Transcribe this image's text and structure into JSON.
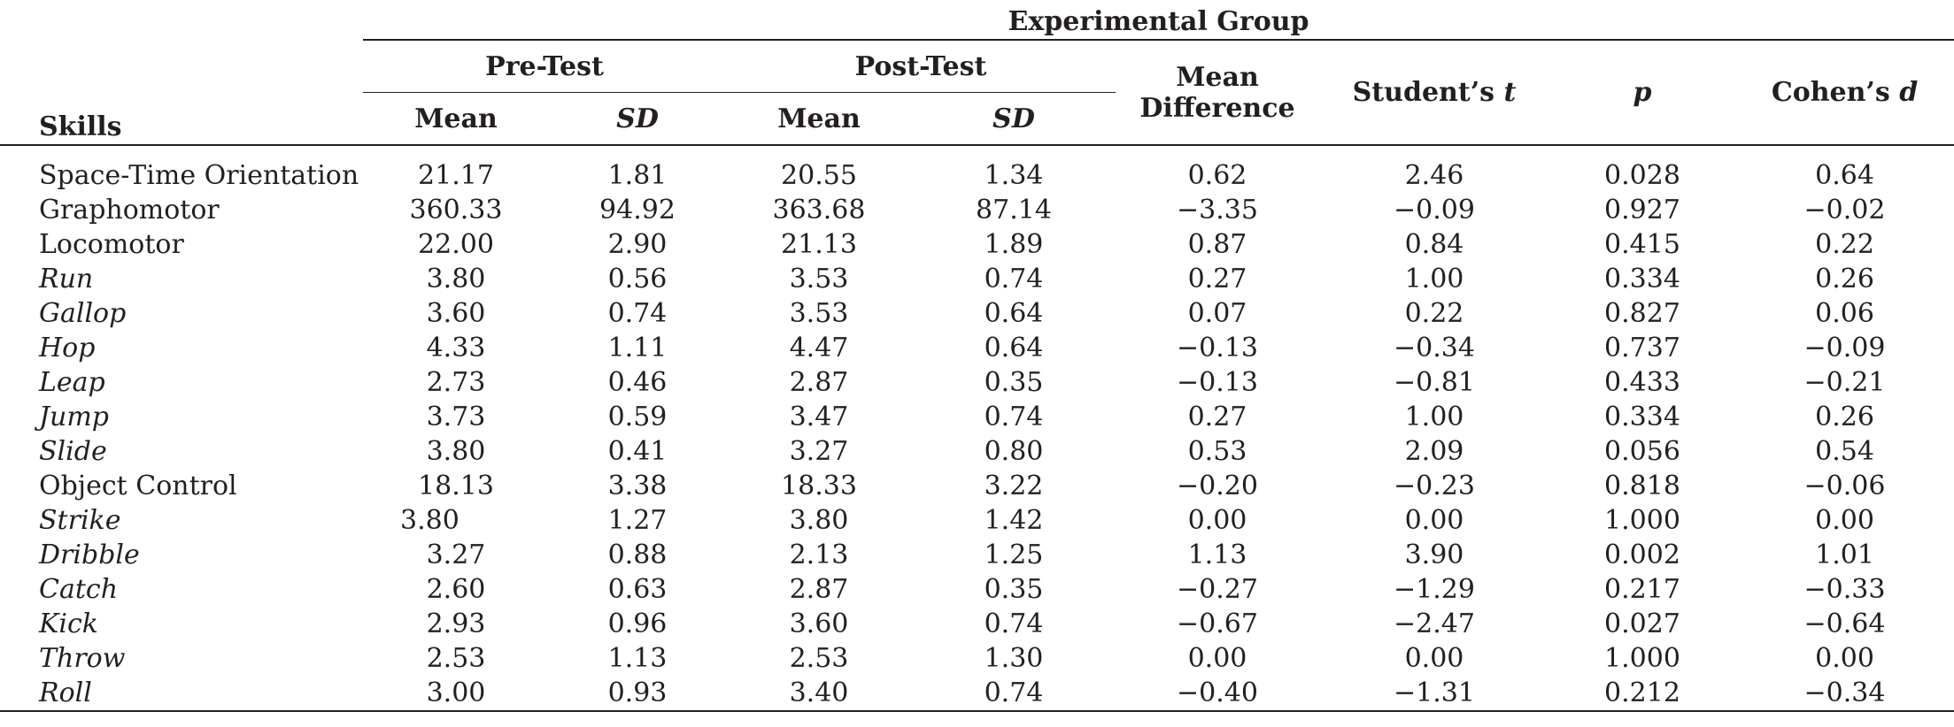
{
  "table": {
    "group_header": "Experimental Group",
    "skills_header": "Skills",
    "pre_test_header": "Pre-Test",
    "post_test_header": "Post-Test",
    "mean_diff_header_line1": "Mean",
    "mean_diff_header_line2": "Difference",
    "students_t_header": "Student’s",
    "students_t_symbol": "t",
    "p_header": "p",
    "cohens_d_header": "Cohen’s",
    "cohens_d_symbol": "d",
    "mean_label": "Mean",
    "sd_label": "SD",
    "rows": [
      {
        "skill": "Space-Time Orientation",
        "italic": false,
        "pre_mean": "21.17",
        "pre_sd": "1.81",
        "post_mean": "20.55",
        "post_sd": "1.34",
        "mean_diff": "0.62",
        "t": "2.46",
        "p": "0.028",
        "d": "0.64"
      },
      {
        "skill": "Graphomotor",
        "italic": false,
        "pre_mean": "360.33",
        "pre_sd": "94.92",
        "post_mean": "363.68",
        "post_sd": "87.14",
        "mean_diff": "−3.35",
        "t": "−0.09",
        "p": "0.927",
        "d": "−0.02"
      },
      {
        "skill": "Locomotor",
        "italic": false,
        "pre_mean": "22.00",
        "pre_sd": "2.90",
        "post_mean": "21.13",
        "post_sd": "1.89",
        "mean_diff": "0.87",
        "t": "0.84",
        "p": "0.415",
        "d": "0.22"
      },
      {
        "skill": "Run",
        "italic": true,
        "pre_mean": "3.80",
        "pre_sd": "0.56",
        "post_mean": "3.53",
        "post_sd": "0.74",
        "mean_diff": "0.27",
        "t": "1.00",
        "p": "0.334",
        "d": "0.26"
      },
      {
        "skill": "Gallop",
        "italic": true,
        "pre_mean": "3.60",
        "pre_sd": "0.74",
        "post_mean": "3.53",
        "post_sd": "0.64",
        "mean_diff": "0.07",
        "t": "0.22",
        "p": "0.827",
        "d": "0.06"
      },
      {
        "skill": "Hop",
        "italic": true,
        "pre_mean": "4.33",
        "pre_sd": "1.11",
        "post_mean": "4.47",
        "post_sd": "0.64",
        "mean_diff": "−0.13",
        "t": "−0.34",
        "p": "0.737",
        "d": "−0.09"
      },
      {
        "skill": "Leap",
        "italic": true,
        "pre_mean": "2.73",
        "pre_sd": "0.46",
        "post_mean": "2.87",
        "post_sd": "0.35",
        "mean_diff": "−0.13",
        "t": "−0.81",
        "p": "0.433",
        "d": "−0.21"
      },
      {
        "skill": "Jump",
        "italic": true,
        "pre_mean": "3.73",
        "pre_sd": "0.59",
        "post_mean": "3.47",
        "post_sd": "0.74",
        "mean_diff": "0.27",
        "t": "1.00",
        "p": "0.334",
        "d": "0.26"
      },
      {
        "skill": "Slide",
        "italic": true,
        "pre_mean": "3.80",
        "pre_sd": "0.41",
        "post_mean": "3.27",
        "post_sd": "0.80",
        "mean_diff": "0.53",
        "t": "2.09",
        "p": "0.056",
        "d": "0.54"
      },
      {
        "skill": "Object Control",
        "italic": false,
        "pre_mean": "18.13",
        "pre_sd": "3.38",
        "post_mean": "18.33",
        "post_sd": "3.22",
        "mean_diff": "−0.20",
        "t": "−0.23",
        "p": "0.818",
        "d": "−0.06"
      },
      {
        "skill": "Strike",
        "italic": true,
        "pre_mean": "3.80",
        "pre_sd": "1.27",
        "post_mean": "3.80",
        "post_sd": "1.42",
        "mean_diff": "0.00",
        "t": "0.00",
        "p": "1.000",
        "d": "0.00"
      },
      {
        "skill": "Dribble",
        "italic": true,
        "pre_mean": "3.27",
        "pre_sd": "0.88",
        "post_mean": "2.13",
        "post_sd": "1.25",
        "mean_diff": "1.13",
        "t": "3.90",
        "p": "0.002",
        "d": "1.01"
      },
      {
        "skill": "Catch",
        "italic": true,
        "pre_mean": "2.60",
        "pre_sd": "0.63",
        "post_mean": "2.87",
        "post_sd": "0.35",
        "mean_diff": "−0.27",
        "t": "−1.29",
        "p": "0.217",
        "d": "−0.33"
      },
      {
        "skill": "Kick",
        "italic": true,
        "pre_mean": "2.93",
        "pre_sd": "0.96",
        "post_mean": "3.60",
        "post_sd": "0.74",
        "mean_diff": "−0.67",
        "t": "−2.47",
        "p": "0.027",
        "d": "−0.64"
      },
      {
        "skill": "Throw",
        "italic": true,
        "pre_mean": "2.53",
        "pre_sd": "1.13",
        "post_mean": "2.53",
        "post_sd": "1.30",
        "mean_diff": "0.00",
        "t": "0.00",
        "p": "1.000",
        "d": "0.00"
      },
      {
        "skill": "Roll",
        "italic": true,
        "pre_mean": "3.00",
        "pre_sd": "0.93",
        "post_mean": "3.40",
        "post_sd": "0.74",
        "mean_diff": "−0.40",
        "t": "−1.31",
        "p": "0.212",
        "d": "−0.34"
      }
    ]
  }
}
